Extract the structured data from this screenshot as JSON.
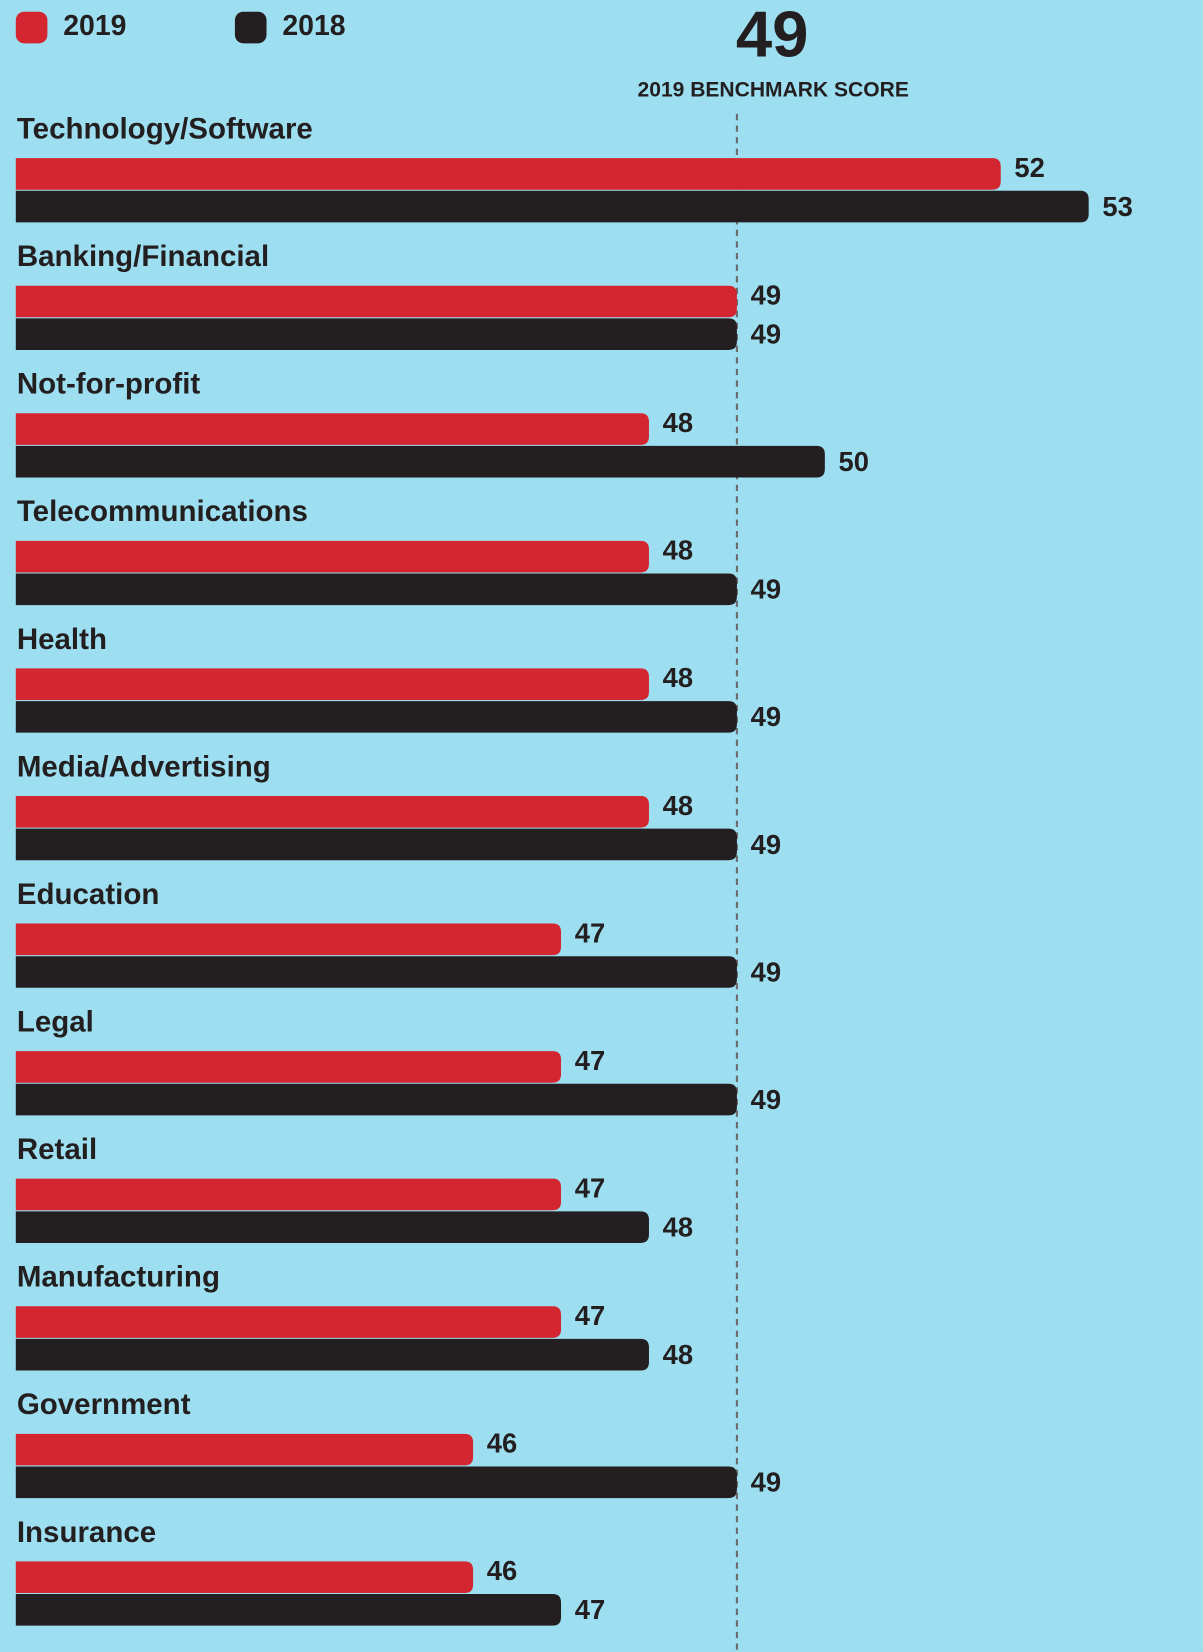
{
  "chart_data": {
    "type": "bar",
    "orientation": "horizontal",
    "categories": [
      "Technology/Software",
      "Banking/Financial",
      "Not-for-profit",
      "Telecommunications",
      "Health",
      "Media/Advertising",
      "Education",
      "Legal",
      "Retail",
      "Manufacturing",
      "Government",
      "Insurance"
    ],
    "series": [
      {
        "name": "2019",
        "color": "#d42630",
        "values": [
          52,
          49,
          48,
          48,
          48,
          48,
          47,
          47,
          47,
          47,
          46,
          46
        ]
      },
      {
        "name": "2018",
        "color": "#231f20",
        "values": [
          53,
          49,
          50,
          49,
          49,
          49,
          49,
          49,
          48,
          48,
          49,
          47
        ]
      }
    ],
    "benchmark": {
      "value": 49,
      "label": "2019 BENCHMARK SCORE"
    },
    "xlim": [
      40.8,
      54.3
    ],
    "legend": "top-left"
  }
}
